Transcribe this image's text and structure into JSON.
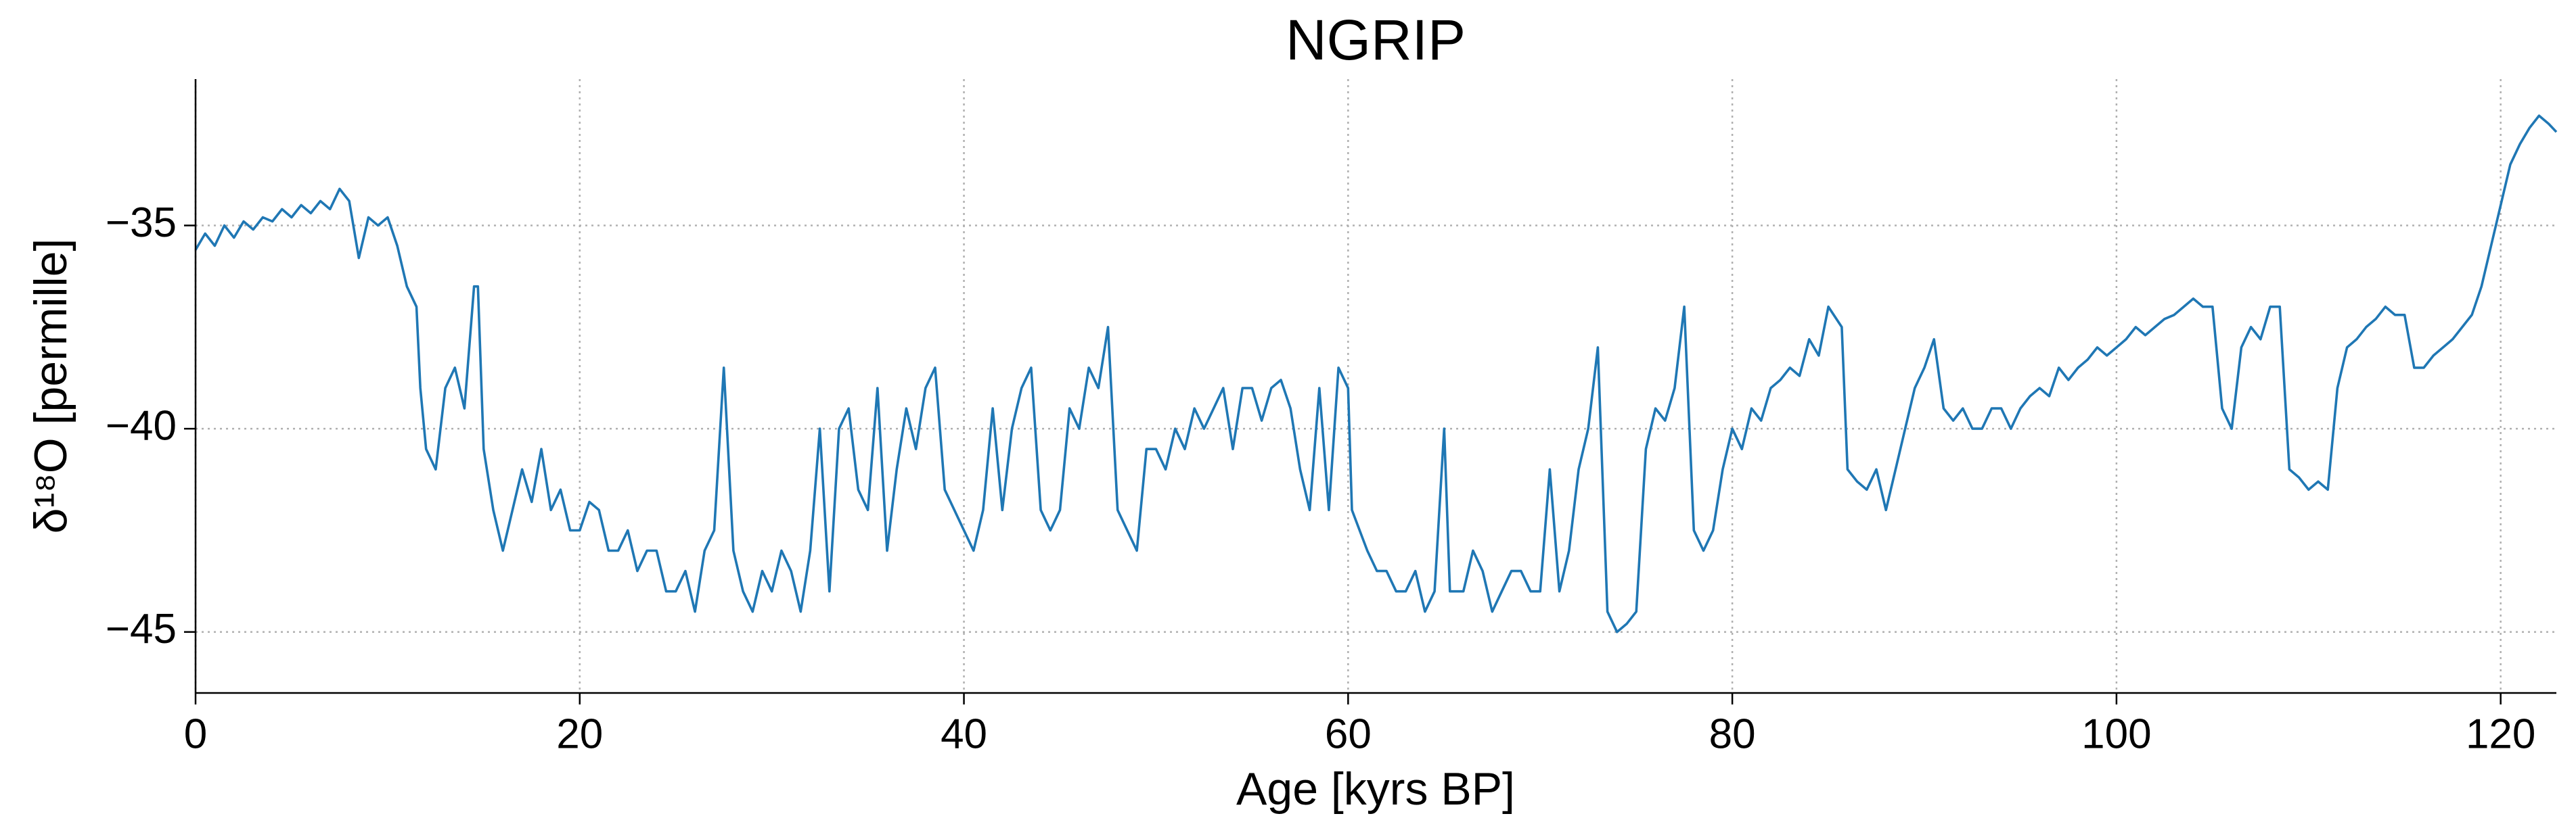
{
  "chart_data": {
    "type": "line",
    "title": "NGRIP",
    "xlabel": "Age [kyrs BP]",
    "ylabel": "δ¹⁸O [permille]",
    "xlim": [
      0,
      122.9
    ],
    "ylim": [
      -46.5,
      -31.4
    ],
    "xticks": [
      0,
      20,
      40,
      60,
      80,
      100,
      120
    ],
    "yticks": [
      {
        "value": -35,
        "label": "−35"
      },
      {
        "value": -40,
        "label": "−40"
      },
      {
        "value": -45,
        "label": "−45"
      }
    ],
    "grid": true,
    "series": [
      {
        "name": "NGRIP",
        "color": "#1f77b4",
        "x": [
          0,
          0.5,
          1,
          1.5,
          2,
          2.5,
          3,
          3.5,
          4,
          4.5,
          5,
          5.5,
          6,
          6.5,
          7,
          7.5,
          8,
          8.5,
          9,
          9.5,
          10,
          10.5,
          11,
          11.5,
          11.7,
          12,
          12.5,
          13,
          13.5,
          14,
          14.5,
          14.7,
          15,
          15.5,
          16,
          16.5,
          17,
          17.5,
          18,
          18.5,
          19,
          19.5,
          20,
          20.5,
          21,
          21.5,
          22,
          22.5,
          23,
          23.5,
          24,
          24.5,
          25,
          25.5,
          26,
          26.5,
          27,
          27.5,
          28,
          28.5,
          29,
          29.5,
          30,
          30.5,
          31,
          31.5,
          32,
          32.5,
          33,
          33.5,
          34,
          34.5,
          35,
          35.5,
          36,
          36.5,
          37,
          37.5,
          38,
          38.5,
          39,
          39.5,
          40,
          40.5,
          41,
          41.5,
          42,
          42.5,
          43,
          43.5,
          44,
          44.5,
          45,
          45.5,
          46,
          46.5,
          47,
          47.5,
          48,
          48.5,
          49,
          49.5,
          50,
          50.5,
          51,
          51.5,
          52,
          52.5,
          53,
          53.5,
          54,
          54.5,
          55,
          55.5,
          56,
          56.5,
          57,
          57.5,
          58,
          58.5,
          59,
          59.5,
          60,
          60.2,
          61,
          61.5,
          62,
          62.5,
          63,
          63.5,
          64,
          64.5,
          65,
          65.3,
          66,
          66.5,
          67,
          67.5,
          68,
          68.5,
          69,
          69.5,
          70,
          70.5,
          71,
          71.5,
          72,
          72.5,
          73,
          73.5,
          74,
          74.5,
          75,
          75.5,
          76,
          76.5,
          77,
          77.5,
          78,
          78.5,
          79,
          79.5,
          80,
          80.5,
          81,
          81.5,
          82,
          82.5,
          83,
          83.5,
          84,
          84.5,
          85,
          85.7,
          86,
          86.5,
          87,
          87.5,
          88,
          88.5,
          89,
          89.5,
          90,
          90.5,
          91,
          91.5,
          92,
          92.5,
          93,
          93.5,
          94,
          94.5,
          95,
          95.5,
          96,
          96.5,
          97,
          97.5,
          98,
          98.5,
          99,
          99.5,
          100,
          100.5,
          101,
          101.5,
          102,
          102.5,
          103,
          103.5,
          104,
          104.5,
          105,
          105.5,
          106,
          106.5,
          107,
          107.5,
          108,
          108.5,
          109,
          109.5,
          110,
          110.5,
          111,
          111.5,
          112,
          112.5,
          113,
          113.5,
          114,
          114.5,
          115,
          115.5,
          116,
          116.5,
          117,
          117.5,
          118,
          118.5,
          119,
          119.5,
          120,
          120.5,
          121,
          121.5,
          122,
          122.5,
          122.9
        ],
        "values": [
          -35.6,
          -35.2,
          -35.5,
          -35.0,
          -35.3,
          -34.9,
          -35.1,
          -34.8,
          -34.9,
          -34.6,
          -34.8,
          -34.5,
          -34.7,
          -34.4,
          -34.6,
          -34.1,
          -34.4,
          -35.8,
          -34.8,
          -35.0,
          -34.8,
          -35.5,
          -36.5,
          -37.0,
          -39.0,
          -40.5,
          -41.0,
          -39.0,
          -38.5,
          -39.5,
          -36.5,
          -36.5,
          -40.5,
          -42.0,
          -43.0,
          -42.0,
          -41.0,
          -41.8,
          -40.5,
          -42.0,
          -41.5,
          -42.5,
          -42.5,
          -41.8,
          -42.0,
          -43.0,
          -43.0,
          -42.5,
          -43.5,
          -43.0,
          -43.0,
          -44.0,
          -44.0,
          -43.5,
          -44.5,
          -43.0,
          -42.5,
          -38.5,
          -43.0,
          -44.0,
          -44.5,
          -43.5,
          -44.0,
          -43.0,
          -43.5,
          -44.5,
          -43.0,
          -40.0,
          -44.0,
          -40.0,
          -39.5,
          -41.5,
          -42.0,
          -39.0,
          -43.0,
          -41.0,
          -39.5,
          -40.5,
          -39.0,
          -38.5,
          -41.5,
          -42.0,
          -42.5,
          -43.0,
          -42.0,
          -39.5,
          -42.0,
          -40.0,
          -39.0,
          -38.5,
          -42.0,
          -42.5,
          -42.0,
          -39.5,
          -40.0,
          -38.5,
          -39.0,
          -37.5,
          -42.0,
          -42.5,
          -43.0,
          -40.5,
          -40.5,
          -41.0,
          -40.0,
          -40.5,
          -39.5,
          -40.0,
          -39.5,
          -39.0,
          -40.5,
          -39.0,
          -39.0,
          -39.8,
          -39.0,
          -38.8,
          -39.5,
          -41.0,
          -42.0,
          -39.0,
          -42.0,
          -38.5,
          -39.0,
          -42.0,
          -43.0,
          -43.5,
          -43.5,
          -44.0,
          -44.0,
          -43.5,
          -44.5,
          -44.0,
          -40.0,
          -44.0,
          -44.0,
          -43.0,
          -43.5,
          -44.5,
          -44.0,
          -43.5,
          -43.5,
          -44.0,
          -44.0,
          -41.0,
          -44.0,
          -43.0,
          -41.0,
          -40.0,
          -38.0,
          -44.5,
          -45.0,
          -44.8,
          -44.5,
          -40.5,
          -39.5,
          -39.8,
          -39.0,
          -37.0,
          -42.5,
          -43.0,
          -42.5,
          -41.0,
          -40.0,
          -40.5,
          -39.5,
          -39.8,
          -39.0,
          -38.8,
          -38.5,
          -38.7,
          -37.8,
          -38.2,
          -37.0,
          -37.5,
          -41.0,
          -41.3,
          -41.5,
          -41.0,
          -42.0,
          -41.0,
          -40.0,
          -39.0,
          -38.5,
          -37.8,
          -39.5,
          -39.8,
          -39.5,
          -40.0,
          -40.0,
          -39.5,
          -39.5,
          -40.0,
          -39.5,
          -39.2,
          -39.0,
          -39.2,
          -38.5,
          -38.8,
          -38.5,
          -38.3,
          -38.0,
          -38.2,
          -38.0,
          -37.8,
          -37.5,
          -37.7,
          -37.5,
          -37.3,
          -37.2,
          -37.0,
          -36.8,
          -37.0,
          -37.0,
          -39.5,
          -40.0,
          -38.0,
          -37.5,
          -37.8,
          -37.0,
          -37.0,
          -41.0,
          -41.2,
          -41.5,
          -41.3,
          -41.5,
          -39.0,
          -38.0,
          -37.8,
          -37.5,
          -37.3,
          -37.0,
          -37.2,
          -37.2,
          -38.5,
          -38.5,
          -38.2,
          -38.0,
          -37.8,
          -37.5,
          -37.2,
          -36.5,
          -35.5,
          -34.5,
          -33.5,
          -33.0,
          -32.6,
          -32.3,
          -32.5,
          -32.7
        ]
      }
    ]
  }
}
